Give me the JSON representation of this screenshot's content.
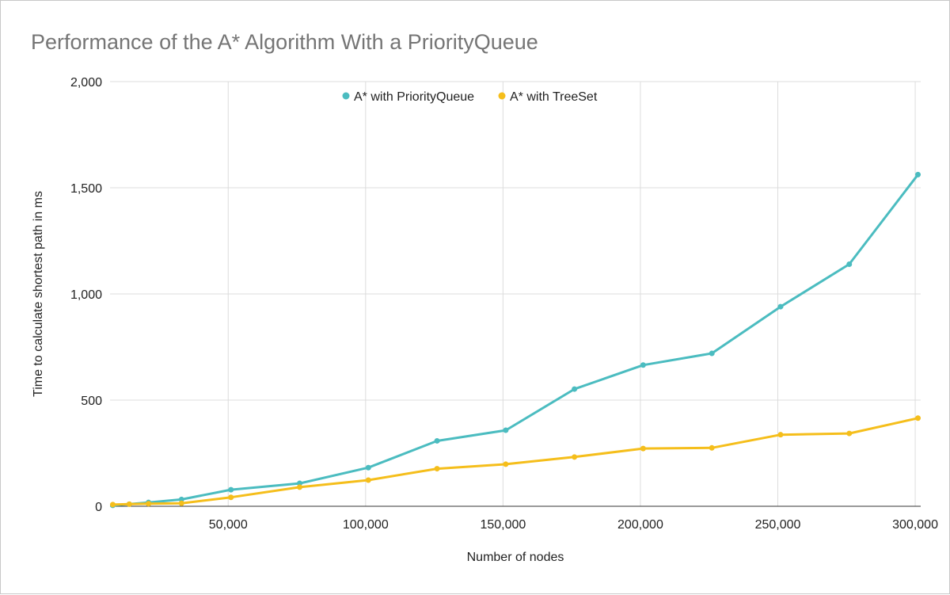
{
  "chart_data": {
    "type": "line",
    "title": "Performance of the A* Algorithm With a PriorityQueue",
    "xlabel": "Number of nodes",
    "ylabel": "Time to calculate shortest path in ms",
    "xlim": [
      7000,
      302000
    ],
    "ylim": [
      0,
      2000
    ],
    "xticks": [
      50000,
      100000,
      150000,
      200000,
      250000,
      300000
    ],
    "xtick_labels": [
      "50,000",
      "100,000",
      "150,000",
      "200,000",
      "250,000",
      "300,000"
    ],
    "yticks": [
      0,
      500,
      1000,
      1500,
      2000
    ],
    "ytick_labels": [
      "0",
      "500",
      "1,000",
      "1,500",
      "2,000"
    ],
    "grid": true,
    "legend_position": "top-center",
    "series": [
      {
        "name": "A* with PriorityQueue",
        "color": "#4bbcc0",
        "x": [
          8000,
          14000,
          21000,
          33000,
          51000,
          76000,
          101000,
          126000,
          151000,
          176000,
          201000,
          226000,
          251000,
          276000,
          301000
        ],
        "y": [
          4,
          10,
          18,
          32,
          78,
          108,
          182,
          308,
          358,
          552,
          665,
          720,
          940,
          1140,
          1562
        ]
      },
      {
        "name": "A* with TreeSet",
        "color": "#f5be1b",
        "x": [
          8000,
          14000,
          21000,
          33000,
          51000,
          76000,
          101000,
          126000,
          151000,
          176000,
          201000,
          226000,
          251000,
          276000,
          301000
        ],
        "y": [
          8,
          10,
          12,
          14,
          42,
          90,
          123,
          177,
          198,
          232,
          272,
          275,
          337,
          343,
          415
        ]
      }
    ]
  }
}
